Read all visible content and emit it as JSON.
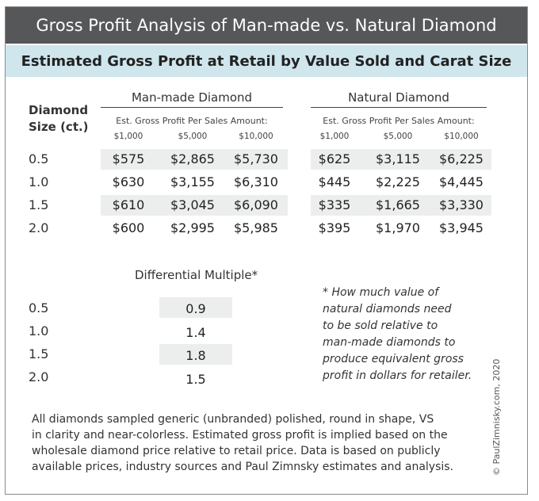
{
  "title": "Gross Profit Analysis of Man-made vs. Natural Diamond",
  "subtitle": "Estimated Gross Profit at Retail by Value Sold and Carat Size",
  "size_header": [
    "Diamond",
    "Size (ct.)"
  ],
  "groups": [
    {
      "name": "Man-made Diamond",
      "est_label": "Est. Gross Profit Per Sales Amount:",
      "amounts": [
        "$1,000",
        "$5,000",
        "$10,000"
      ],
      "rows": [
        [
          "$575",
          "$2,865",
          "$5,730"
        ],
        [
          "$630",
          "$3,155",
          "$6,310"
        ],
        [
          "$610",
          "$3,045",
          "$6,090"
        ],
        [
          "$600",
          "$2,995",
          "$5,985"
        ]
      ]
    },
    {
      "name": "Natural Diamond",
      "est_label": "Est. Gross Profit Per Sales Amount:",
      "amounts": [
        "$1,000",
        "$5,000",
        "$10,000"
      ],
      "rows": [
        [
          "$625",
          "$3,115",
          "$6,225"
        ],
        [
          "$445",
          "$2,225",
          "$4,445"
        ],
        [
          "$335",
          "$1,665",
          "$3,330"
        ],
        [
          "$395",
          "$1,970",
          "$3,945"
        ]
      ]
    }
  ],
  "sizes": [
    "0.5",
    "1.0",
    "1.5",
    "2.0"
  ],
  "differential": {
    "title": "Differential Multiple*",
    "sizes": [
      "0.5",
      "1.0",
      "1.5",
      "2.0"
    ],
    "values": [
      "0.9",
      "1.4",
      "1.8",
      "1.5"
    ]
  },
  "footnote": [
    "* How much value of",
    "natural diamonds need",
    "to be sold relative to",
    "man-made diamonds to",
    "produce equivalent gross",
    "profit in dollars for retailer."
  ],
  "note": [
    "All diamonds sampled generic (unbranded) polished, round in shape, VS",
    "in clarity and near-colorless. Estimated gross profit is implied based on the",
    "wholesale diamond price relative to retail price. Data is based on publicly",
    "available prices, industry sources and Paul Zimnsky estimates and analysis."
  ],
  "credit": "© PaulZimnisky.com, 2020"
}
